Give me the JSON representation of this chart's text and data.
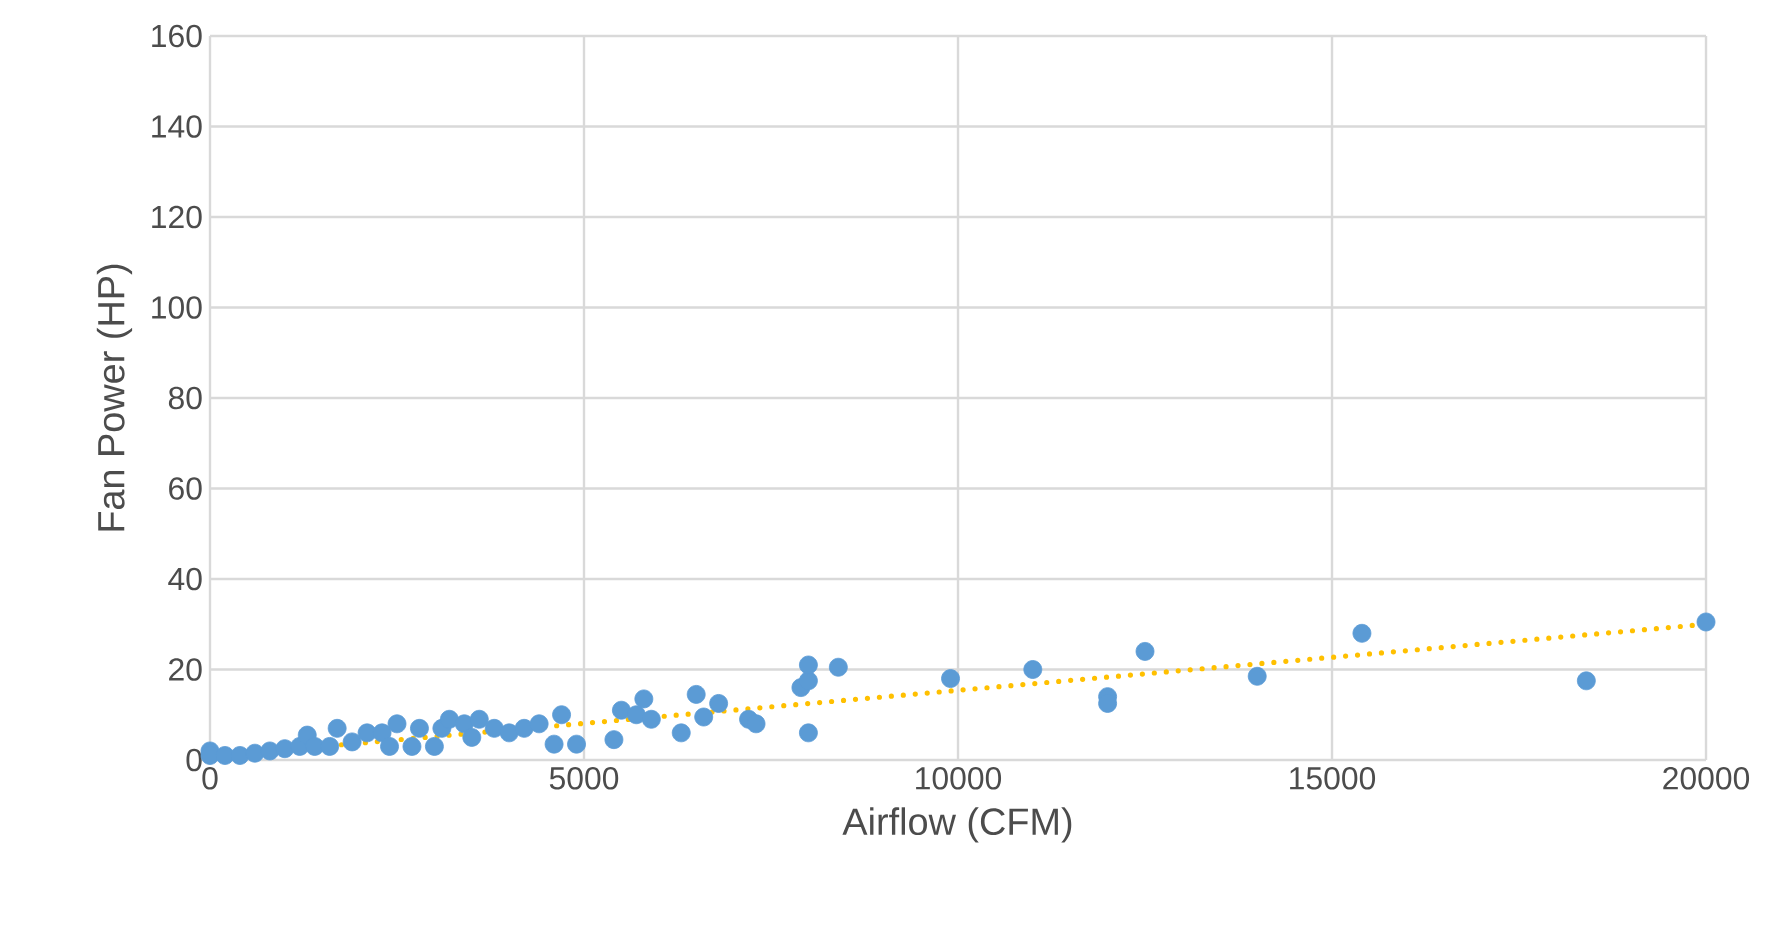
{
  "chart_data": {
    "type": "scatter",
    "xlabel": "Airflow (CFM)",
    "ylabel": "Fan Power (HP)",
    "xlim": [
      0,
      20000
    ],
    "xticks": [
      0,
      5000,
      10000,
      15000,
      20000
    ],
    "ylim": [
      0,
      160
    ],
    "yticks": [
      0,
      20,
      40,
      60,
      80,
      100,
      120,
      140,
      160
    ],
    "grid": true,
    "series": [
      {
        "color": "#5b9bd5",
        "marker": "circle",
        "x": [
          0,
          0,
          200,
          400,
          600,
          800,
          1000,
          1200,
          1300,
          1400,
          1600,
          1700,
          1900,
          2100,
          2300,
          2400,
          2500,
          2700,
          2800,
          3000,
          3100,
          3200,
          3400,
          3500,
          3600,
          3800,
          4000,
          4200,
          4400,
          4600,
          4700,
          4900,
          5400,
          5500,
          5700,
          5800,
          5900,
          6300,
          6500,
          6600,
          6800,
          7200,
          7300,
          7900,
          8000,
          8000,
          8000,
          8400,
          9900,
          11000,
          12000,
          12000,
          12500,
          14000,
          15400,
          18400,
          20000
        ],
        "values": [
          2,
          1,
          1,
          1,
          1.5,
          2,
          2.5,
          3,
          5.5,
          3,
          3,
          7,
          4,
          6,
          6,
          3,
          8,
          3,
          7,
          3,
          7,
          9,
          8,
          5,
          9,
          7,
          6,
          7,
          8,
          3.5,
          10,
          3.5,
          4.5,
          11,
          10,
          13.5,
          9,
          6,
          14.5,
          9.5,
          12.5,
          9,
          8,
          16,
          17.5,
          21,
          6,
          20.5,
          18,
          20,
          14,
          12.5,
          24,
          18.5,
          28,
          17.5,
          30.5
        ]
      },
      {
        "type": "line",
        "line_style": "dotted",
        "marker": "none",
        "color": "#ffc000",
        "x": [
          0,
          20000
        ],
        "values": [
          0.8,
          30
        ]
      }
    ]
  }
}
